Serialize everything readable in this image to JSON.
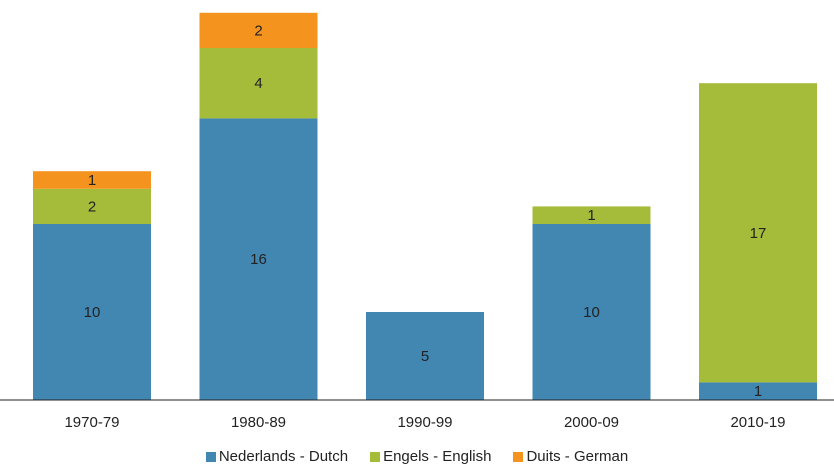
{
  "chart_data": {
    "type": "bar",
    "stacked": true,
    "categories": [
      "1970-79",
      "1980-89",
      "1990-99",
      "2000-09",
      "2010-19"
    ],
    "series": [
      {
        "name": "Nederlands - Dutch",
        "color": "#4286b2",
        "values": [
          10,
          16,
          5,
          10,
          1
        ]
      },
      {
        "name": "Engels - English",
        "color": "#a5bb3a",
        "values": [
          2,
          4,
          0,
          1,
          17
        ]
      },
      {
        "name": "Duits - German",
        "color": "#f4931e",
        "values": [
          1,
          2,
          0,
          0,
          0
        ]
      }
    ],
    "ylim": [
      0,
      22
    ],
    "grid": false,
    "legend": "bottom-center",
    "title": "",
    "xlabel": "",
    "ylabel": ""
  }
}
